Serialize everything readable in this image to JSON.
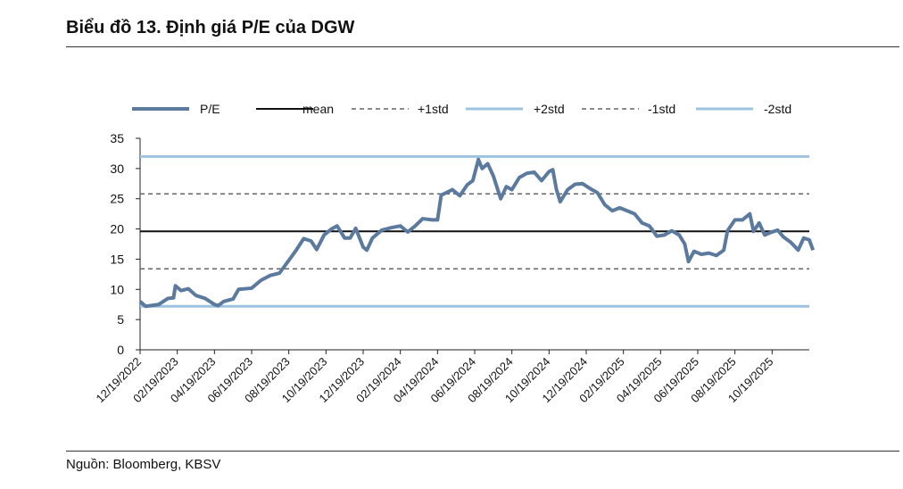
{
  "title": "Biểu đồ 13. Định giá P/E của DGW",
  "source": "Nguồn: Bloomberg, KBSV",
  "chart_data": {
    "type": "line",
    "title": "Biểu đồ 13. Định giá P/E của DGW",
    "xlabel": "",
    "ylabel": "",
    "ylim": [
      0,
      35
    ],
    "yticks": [
      0,
      5,
      10,
      15,
      20,
      25,
      30,
      35
    ],
    "xticks": [
      "12/19/2022",
      "02/19/2023",
      "04/19/2023",
      "06/19/2023",
      "08/19/2023",
      "10/19/2023",
      "12/19/2023",
      "02/19/2024",
      "04/19/2024",
      "06/19/2024",
      "08/19/2024",
      "10/19/2024",
      "12/19/2024",
      "02/19/2025",
      "04/19/2025",
      "06/19/2025",
      "08/19/2025",
      "10/19/2025"
    ],
    "x_unit": "months since 12/19/2022",
    "legend_position": "top",
    "colors": {
      "pe": "#5b7a9d",
      "mean": "#111111",
      "std1": "#666666",
      "std2": "#9dc3e0"
    },
    "series": [
      {
        "name": "P/E",
        "x": [
          0,
          0.3,
          1,
          1.5,
          1.8,
          1.9,
          2.2,
          2.6,
          3,
          3.5,
          4,
          4.2,
          4.5,
          5,
          5.3,
          6,
          6.5,
          7,
          7.5,
          8,
          8.4,
          8.8,
          9.2,
          9.5,
          9.9,
          10.3,
          10.6,
          11,
          11.3,
          11.6,
          12,
          12.2,
          12.5,
          13,
          13.5,
          14,
          14.4,
          14.8,
          15.2,
          15.7,
          16,
          16.2,
          16.8,
          17.2,
          17.6,
          17.9,
          18.2,
          18.4,
          18.7,
          19,
          19.4,
          19.7,
          20,
          20.4,
          20.8,
          21.2,
          21.6,
          22,
          22.2,
          22.4,
          22.6,
          23,
          23.4,
          23.8,
          24.2,
          24.6,
          25,
          25.4,
          25.8,
          26.2,
          26.6,
          27,
          27.4,
          27.8,
          28.2,
          28.6,
          29,
          29.3,
          29.5,
          29.8,
          30.2,
          30.6,
          31,
          31.4,
          31.6,
          32,
          32.4,
          32.8,
          33,
          33.3,
          33.6,
          34,
          34.3,
          34.6,
          35,
          35.4,
          35.7,
          36,
          36.2
        ],
        "values": [
          8,
          7.2,
          7.5,
          8.5,
          8.6,
          10.6,
          9.8,
          10.1,
          9,
          8.5,
          7.5,
          7.3,
          8,
          8.4,
          10,
          10.2,
          11.5,
          12.3,
          12.7,
          14.8,
          16.5,
          18.4,
          18,
          16.6,
          19,
          20,
          20.5,
          18.5,
          18.5,
          20.1,
          17,
          16.5,
          18.5,
          19.8,
          20.2,
          20.5,
          19.5,
          20.5,
          21.7,
          21.5,
          21.5,
          25.6,
          26.5,
          25.5,
          27.3,
          28,
          31.5,
          30,
          30.8,
          28.8,
          25,
          27,
          26.5,
          28.5,
          29.2,
          29.4,
          28,
          29.5,
          29.8,
          26.5,
          24.5,
          26.5,
          27.4,
          27.5,
          26.7,
          26,
          24,
          23,
          23.5,
          23,
          22.5,
          21,
          20.5,
          18.8,
          19,
          19.7,
          19,
          17.5,
          14.6,
          16.3,
          15.8,
          16,
          15.6,
          16.5,
          19.7,
          21.5,
          21.5,
          22.5,
          19.6,
          21,
          19,
          19.5,
          19.8,
          18.7,
          17.8,
          16.5,
          18.5,
          18.2,
          16.5
        ]
      },
      {
        "name": "mean",
        "value": 19.6
      },
      {
        "name": "+1std",
        "value": 25.8
      },
      {
        "name": "+2std",
        "value": 32.0
      },
      {
        "name": "-1std",
        "value": 13.4
      },
      {
        "name": "-2std",
        "value": 7.2
      }
    ]
  }
}
